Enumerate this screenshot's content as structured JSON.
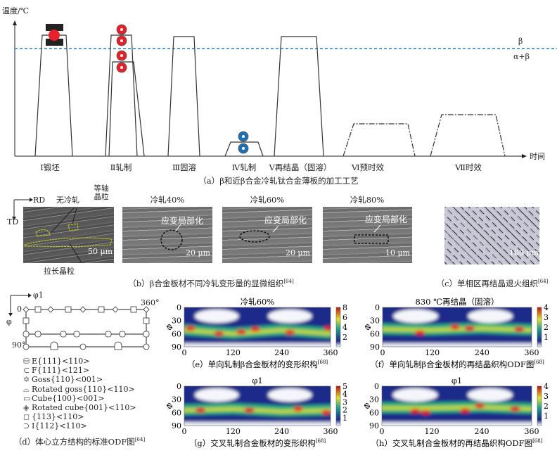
{
  "panel_a": {
    "ylabel": "温度/℃",
    "xlabel": "时间",
    "beta_label": "β",
    "alpha_beta_label": "α+β",
    "beta_line_color": "#5b9bd5",
    "steps": [
      "Ⅰ锻坯",
      "Ⅱ轧制",
      "Ⅲ固溶",
      "Ⅳ轧制",
      "Ⅴ再结晶（固溶）",
      "Ⅵ预时效",
      "Ⅶ时效"
    ],
    "caption": "（a）β和近β合金冷轧钛合金薄板的加工工艺",
    "icons": [
      "forging-press",
      "hot-rolls",
      "cold-rolls"
    ],
    "hot_color": "#e8202a",
    "cold_color": "#1f6fb5"
  },
  "panel_b": {
    "rd": "RD",
    "td": "TD",
    "images": [
      {
        "title": "无冷轧",
        "scale": "50 μm",
        "labels": [
          "等轴晶粒",
          "拉长晶粒"
        ]
      },
      {
        "title": "冷轧40%",
        "scale": "20 μm",
        "labels": [
          "应变局部化"
        ]
      },
      {
        "title": "冷轧60%",
        "scale": "20 μm",
        "labels": [
          "应变局部化"
        ]
      },
      {
        "title": "冷轧80%",
        "scale": "10 μm",
        "labels": [
          "应变局部化"
        ]
      }
    ],
    "caption": "（b）β合金板材不同冷轧变形量的显微组织",
    "ref": "[64]"
  },
  "panel_c": {
    "scale": "100 μm",
    "caption": "（c）单相区再结晶退火组织",
    "ref": "[64]"
  },
  "panel_d": {
    "x_axis": "φ1",
    "y_axis": "φ",
    "tick_0": "0",
    "tick_360": "360°",
    "tick_90": "90°",
    "legend": [
      "E{111}<110>",
      "F{111}<121>",
      "Goss{110}<001>",
      "Rotated goss{110}<110>",
      "Cube{100}<001>",
      "Rotated cube{001}<110>",
      "{113}<110>",
      "I{112}<110>"
    ],
    "caption": "（d）体心立方结构的标准ODF图",
    "ref": "[64]"
  },
  "chart_data": [
    {
      "type": "heatmap",
      "id": "e",
      "title": "冷轧60%",
      "ylabel": "Φ",
      "xticks": [
        "0",
        "120",
        "240",
        "360"
      ],
      "yticks": [
        "0",
        "30",
        "60",
        "90"
      ],
      "xlim": [
        0,
        360
      ],
      "ylim": [
        0,
        90
      ],
      "colorbar": [
        "2",
        "4",
        "6",
        "8"
      ],
      "cmax": 8,
      "band_center": [
        52,
        60,
        52,
        60
      ],
      "hot_spots": [
        [
          15,
          48
        ],
        [
          85,
          60
        ],
        [
          140,
          56
        ],
        [
          175,
          50
        ],
        [
          260,
          57
        ],
        [
          355,
          48
        ]
      ],
      "caption": "（e）单向轧制β合金板材的变形织构",
      "ref": "[68]"
    },
    {
      "type": "heatmap",
      "id": "f",
      "title": "830 ℃再结晶（固溶）",
      "ylabel": "Φ",
      "xticks": [
        "0",
        "120",
        "240",
        "360"
      ],
      "yticks": [
        "0",
        "30",
        "60",
        "90"
      ],
      "xlim": [
        0,
        360
      ],
      "ylim": [
        0,
        90
      ],
      "colorbar": [
        "1",
        "2",
        "3",
        "4"
      ],
      "cmax": 4,
      "band_center": [
        50,
        52,
        48,
        52
      ],
      "hot_spots": [
        [
          90,
          58
        ],
        [
          175,
          45
        ],
        [
          210,
          48
        ],
        [
          330,
          50
        ]
      ],
      "caption": "（f）单向轧制β合金板材的再结晶织构ODF图",
      "ref": "[68]"
    },
    {
      "type": "heatmap",
      "id": "g",
      "title": "φ1",
      "ylabel": "Φ",
      "xticks": [
        "0",
        "120",
        "240",
        "360"
      ],
      "yticks": [
        "0",
        "30",
        "60",
        "90"
      ],
      "xlim": [
        0,
        360
      ],
      "ylim": [
        0,
        90
      ],
      "colorbar": [
        "1",
        "2",
        "3",
        "4",
        "5"
      ],
      "cmax": 5,
      "band_center": [
        55,
        52,
        58,
        55
      ],
      "hot_spots": [
        [
          40,
          55
        ],
        [
          160,
          55
        ],
        [
          280,
          52
        ],
        [
          350,
          60
        ]
      ],
      "caption": "（g）交叉轧制合金板材的变形织构",
      "ref": "[68]"
    },
    {
      "type": "heatmap",
      "id": "h",
      "title": "φ1",
      "ylabel": "Φ",
      "xticks": [
        "0",
        "120",
        "240",
        "360"
      ],
      "yticks": [
        "0",
        "30",
        "60",
        "90"
      ],
      "xlim": [
        0,
        360
      ],
      "ylim": [
        0,
        90
      ],
      "colorbar": [
        "1",
        "2",
        "3",
        "4"
      ],
      "cmax": 4,
      "band_center": [
        50,
        50,
        48,
        52
      ],
      "hot_spots": [
        [
          80,
          57
        ],
        [
          105,
          60
        ],
        [
          200,
          56
        ],
        [
          235,
          45
        ],
        [
          320,
          52
        ]
      ],
      "caption": "（h）交叉轧制合金板材的再结晶织构ODF图",
      "ref": "[68]"
    }
  ]
}
